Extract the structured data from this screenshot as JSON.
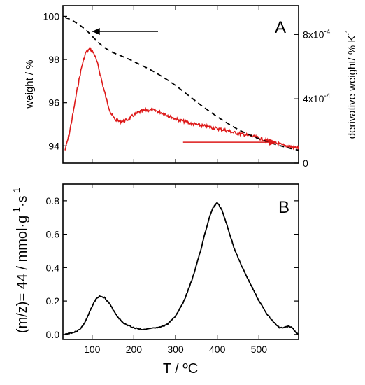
{
  "chart_data": [
    {
      "panel": "A",
      "type": "line",
      "panel_label": "A",
      "xlim": [
        30,
        595
      ],
      "y_left": {
        "label": "weight / %",
        "lim": [
          93.2,
          100.5
        ],
        "ticks": [
          94,
          96,
          98,
          100
        ],
        "tick_labels": [
          "94",
          "96",
          "98",
          "100"
        ]
      },
      "y_right": {
        "label_main": "derivative weight/ % K",
        "label_sup": "-1",
        "lim": [
          0,
          0.00098
        ],
        "ticks": [
          0,
          0.0004,
          0.0008
        ],
        "tick_labels": [
          {
            "mant": "0",
            "exp": ""
          },
          {
            "mant": "4x10",
            "exp": "-4"
          },
          {
            "mant": "8x10",
            "exp": "-4"
          }
        ]
      },
      "series": [
        {
          "axis": "left",
          "style": "dashed",
          "color": "#000000",
          "x": [
            35,
            50,
            60,
            70,
            80,
            90,
            100,
            110,
            120,
            130,
            140,
            150,
            160,
            170,
            180,
            190,
            200,
            220,
            240,
            260,
            280,
            300,
            320,
            340,
            360,
            380,
            400,
            420,
            440,
            460,
            480,
            500,
            520,
            540,
            560,
            580,
            595
          ],
          "y": [
            99.95,
            99.85,
            99.72,
            99.6,
            99.45,
            99.28,
            99.08,
            98.88,
            98.7,
            98.55,
            98.42,
            98.32,
            98.24,
            98.16,
            98.08,
            98.0,
            97.9,
            97.72,
            97.52,
            97.3,
            97.06,
            96.8,
            96.5,
            96.2,
            95.9,
            95.62,
            95.35,
            95.1,
            94.87,
            94.66,
            94.49,
            94.33,
            94.19,
            94.07,
            93.96,
            93.86,
            93.8
          ]
        },
        {
          "axis": "right",
          "style": "noisy",
          "color": "#dd1a1a",
          "x": [
            35,
            45,
            55,
            65,
            75,
            85,
            95,
            105,
            115,
            125,
            135,
            145,
            155,
            165,
            175,
            185,
            200,
            215,
            230,
            245,
            260,
            280,
            300,
            320,
            340,
            360,
            380,
            400,
            420,
            440,
            460,
            480,
            500,
            520,
            540,
            560,
            580,
            595
          ],
          "y": [
            8e-05,
            0.00018,
            0.00032,
            0.00047,
            0.0006,
            0.00069,
            0.00071,
            0.00068,
            0.0006,
            0.00049,
            0.00039,
            0.00031,
            0.00027,
            0.00026,
            0.00026,
            0.00027,
            0.0003,
            0.00032,
            0.00033,
            0.00033,
            0.00032,
            0.0003,
            0.000275,
            0.00026,
            0.000245,
            0.000235,
            0.000225,
            0.000215,
            0.000205,
            0.00019,
            0.00018,
            0.00017,
            0.000155,
            0.00014,
            0.000125,
            0.00011,
            0.0001,
            9.5e-05
          ]
        }
      ],
      "annotations": [
        {
          "kind": "arrow-left",
          "color": "#000000",
          "x_from": 258,
          "x_to": 100,
          "y": 99.3,
          "axis": "left"
        },
        {
          "kind": "arrow-right",
          "color": "#dd1a1a",
          "x_from": 318,
          "x_to": 542,
          "y": 0.00013,
          "axis": "right"
        }
      ]
    },
    {
      "panel": "B",
      "type": "line",
      "panel_label": "B",
      "xlabel": "T / ºC",
      "ylabel_main": "(m/z)= 44 / mmol·g",
      "ylabel_sup1": "-1",
      "ylabel_mid": "·s",
      "ylabel_sup2": "-1",
      "xlim": [
        30,
        595
      ],
      "ylim": [
        -0.03,
        0.9
      ],
      "xticks": [
        100,
        200,
        300,
        400,
        500
      ],
      "xtick_labels": [
        "100",
        "200",
        "300",
        "400",
        "500"
      ],
      "yticks": [
        0.0,
        0.2,
        0.4,
        0.6,
        0.8
      ],
      "ytick_labels": [
        "0.0",
        "0.2",
        "0.4",
        "0.6",
        "0.8"
      ],
      "series": [
        {
          "color": "#000000",
          "x": [
            35,
            50,
            60,
            70,
            80,
            90,
            100,
            110,
            120,
            130,
            140,
            150,
            160,
            170,
            180,
            200,
            220,
            240,
            260,
            280,
            300,
            320,
            340,
            360,
            370,
            380,
            390,
            400,
            410,
            420,
            430,
            440,
            460,
            480,
            500,
            520,
            540,
            550,
            560,
            570,
            580,
            590,
            595
          ],
          "y": [
            0.0,
            0.01,
            0.015,
            0.03,
            0.06,
            0.11,
            0.17,
            0.215,
            0.23,
            0.22,
            0.19,
            0.15,
            0.11,
            0.08,
            0.06,
            0.04,
            0.03,
            0.035,
            0.04,
            0.06,
            0.11,
            0.2,
            0.33,
            0.5,
            0.6,
            0.69,
            0.76,
            0.79,
            0.75,
            0.68,
            0.6,
            0.52,
            0.4,
            0.3,
            0.2,
            0.12,
            0.06,
            0.04,
            0.04,
            0.05,
            0.04,
            0.01,
            0.0
          ]
        }
      ]
    }
  ]
}
